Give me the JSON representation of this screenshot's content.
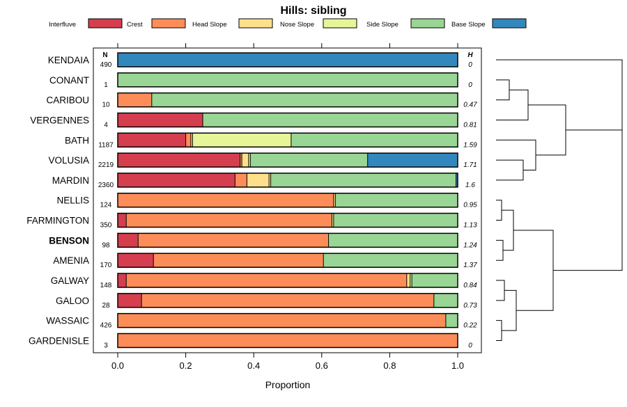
{
  "chart_data": {
    "type": "bar",
    "orientation": "horizontal",
    "stacked": true,
    "title": "Hills: sibling",
    "xlabel": "Proportion",
    "xlim": [
      0,
      1
    ],
    "xticks": [
      "0.0",
      "0.2",
      "0.4",
      "0.6",
      "0.8",
      "1.0"
    ],
    "n_header": "N",
    "h_header": "H",
    "highlighted_category": "BENSON",
    "legend": [
      {
        "name": "Interfluve",
        "color": "#D53E4F"
      },
      {
        "name": "Crest",
        "color": "#FC8D59"
      },
      {
        "name": "Head Slope",
        "color": "#FEE08B"
      },
      {
        "name": "Nose Slope",
        "color": "#E6F598"
      },
      {
        "name": "Side Slope",
        "color": "#99D594"
      },
      {
        "name": "Base Slope",
        "color": "#3288BD"
      }
    ],
    "rows": [
      {
        "label": "KENDAIA",
        "n": "490",
        "h": "0",
        "values": [
          0,
          0,
          0,
          0,
          0,
          1.0
        ]
      },
      {
        "label": "CONANT",
        "n": "1",
        "h": "0",
        "values": [
          0,
          0,
          0,
          0,
          1.0,
          0
        ]
      },
      {
        "label": "CARIBOU",
        "n": "10",
        "h": "0.47",
        "values": [
          0,
          0.1,
          0,
          0,
          0.9,
          0
        ]
      },
      {
        "label": "VERGENNES",
        "n": "4",
        "h": "0.81",
        "values": [
          0.25,
          0,
          0,
          0,
          0.75,
          0
        ]
      },
      {
        "label": "BATH",
        "n": "1187",
        "h": "1.59",
        "values": [
          0.2,
          0.015,
          0.005,
          0.29,
          0.49,
          0
        ]
      },
      {
        "label": "VOLUSIA",
        "n": "2219",
        "h": "1.71",
        "values": [
          0.36,
          0.005,
          0.02,
          0.005,
          0.345,
          0.265
        ]
      },
      {
        "label": "MARDIN",
        "n": "2360",
        "h": "1.6",
        "values": [
          0.345,
          0.035,
          0.065,
          0.005,
          0.545,
          0.005
        ]
      },
      {
        "label": "NELLIS",
        "n": "124",
        "h": "0.95",
        "values": [
          0,
          0.635,
          0.005,
          0,
          0.36,
          0
        ]
      },
      {
        "label": "FARMINGTON",
        "n": "350",
        "h": "1.13",
        "values": [
          0.025,
          0.605,
          0.005,
          0,
          0.365,
          0
        ]
      },
      {
        "label": "BENSON",
        "n": "98",
        "h": "1.24",
        "values": [
          0.06,
          0.56,
          0,
          0,
          0.38,
          0
        ]
      },
      {
        "label": "AMENIA",
        "n": "170",
        "h": "1.37",
        "values": [
          0.105,
          0.5,
          0,
          0,
          0.395,
          0
        ]
      },
      {
        "label": "GALWAY",
        "n": "148",
        "h": "0.84",
        "values": [
          0.025,
          0.825,
          0.01,
          0.005,
          0.135,
          0
        ]
      },
      {
        "label": "GALOO",
        "n": "28",
        "h": "0.73",
        "values": [
          0.07,
          0.86,
          0,
          0,
          0.07,
          0
        ]
      },
      {
        "label": "WASSAIC",
        "n": "426",
        "h": "0.22",
        "values": [
          0,
          0.965,
          0,
          0,
          0.035,
          0
        ]
      },
      {
        "label": "GARDENISLE",
        "n": "3",
        "h": "0",
        "values": [
          0,
          1.0,
          0,
          0,
          0,
          0
        ]
      }
    ],
    "dendrogram": {
      "merge_order": [
        [
          "CONANT",
          "CARIBOU"
        ],
        [
          "CONANT|CARIBOU",
          "VERGENNES"
        ],
        [
          "VOLUSIA",
          "MARDIN"
        ],
        [
          "BATH",
          "VOLUSIA|MARDIN"
        ],
        [
          "CONANT|CARIBOU|VERGENNES",
          "BATH|VOLUSIA|MARDIN"
        ],
        [
          "KENDAIA",
          "CONANT|CARIBOU|VERGENNES|BATH|VOLUSIA|MARDIN"
        ],
        [
          "NELLIS",
          "FARMINGTON"
        ],
        [
          "BENSON",
          "AMENIA"
        ],
        [
          "NELLIS|FARMINGTON",
          "BENSON|AMENIA"
        ],
        [
          "GALWAY",
          "GALOO"
        ],
        [
          "WASSAIC",
          "GARDENISLE"
        ],
        [
          "GALWAY|GALOO",
          "WASSAIC|GARDENISLE"
        ],
        [
          "NELLIS|FARMINGTON|BENSON|AMENIA",
          "GALWAY|GALOO|WASSAIC|GARDENISLE"
        ],
        [
          "KENDAIA|CONANT|CARIBOU|VERGENNES|BATH|VOLUSIA|MARDIN",
          "NELLIS|FARMINGTON|BENSON|AMENIA|GALWAY|GALOO|WASSAIC|GARDENISLE"
        ]
      ]
    }
  }
}
